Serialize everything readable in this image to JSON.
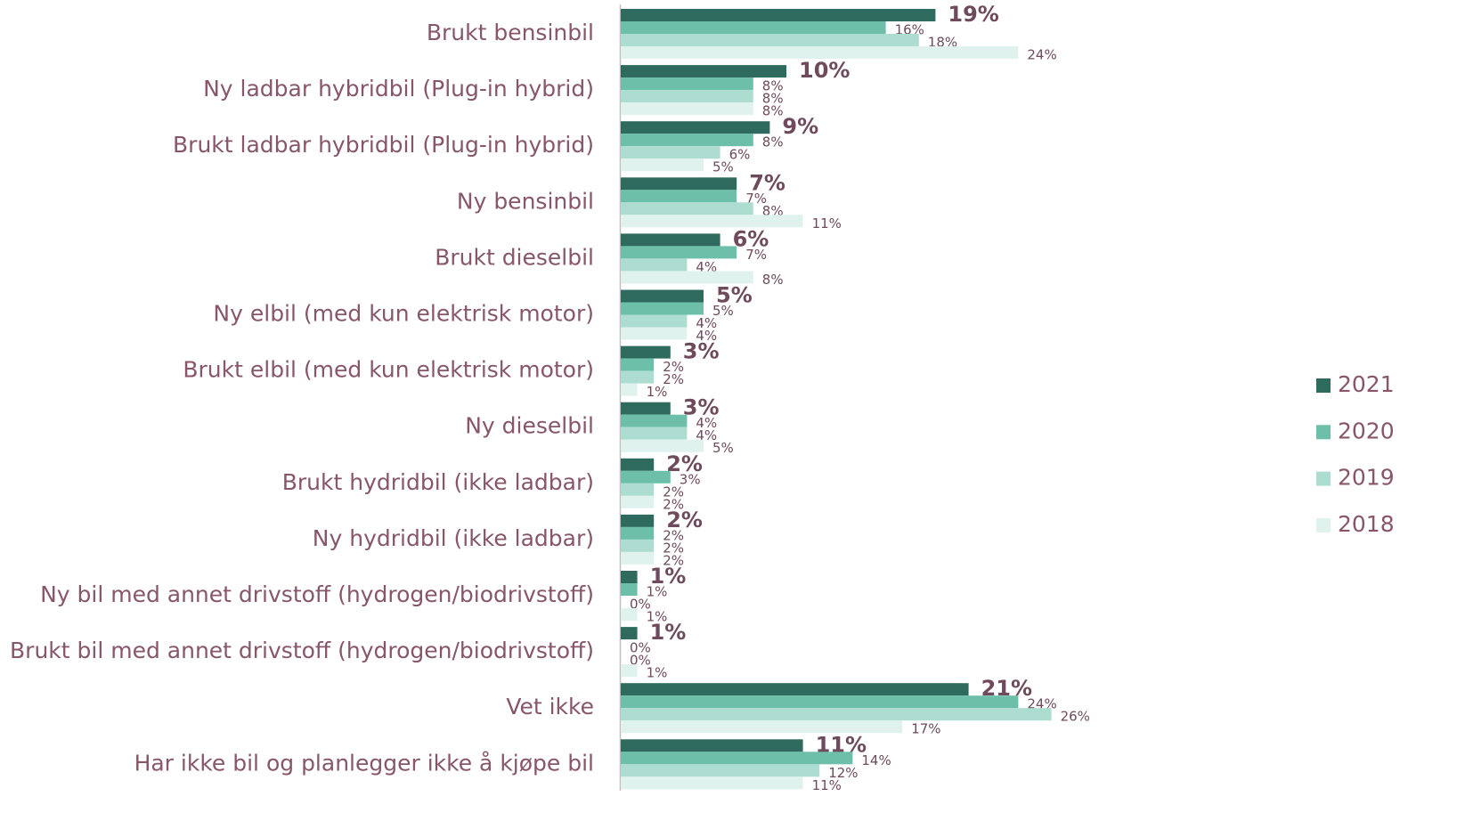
{
  "chart_data": {
    "type": "bar",
    "orientation": "horizontal",
    "categories": [
      "Brukt bensinbil",
      "Ny ladbar hybridbil  (Plug-in hybrid)",
      "Brukt ladbar hybridbil  (Plug-in hybrid)",
      "Ny bensinbil",
      "Brukt dieselbil",
      "Ny elbil (med kun elektrisk motor)",
      "Brukt elbil (med kun elektrisk motor)",
      "Ny dieselbil",
      "Brukt hydridbil (ikke ladbar)",
      "Ny hydridbil (ikke ladbar)",
      "Ny bil med annet drivstoff (hydrogen/biodrivstoff)",
      "Brukt bil med annet drivstoff (hydrogen/biodrivstoff)",
      "Vet ikke",
      "Har ikke bil og planlegger ikke å kjøpe bil"
    ],
    "series": [
      {
        "name": "2021",
        "color": "#2e6b5e",
        "values": [
          19,
          10,
          9,
          7,
          6,
          5,
          3,
          3,
          2,
          2,
          1,
          1,
          21,
          11
        ],
        "value_labels": [
          "19%",
          "10%",
          "9%",
          "7%",
          "6%",
          "5%",
          "3%",
          "3%",
          "2%",
          "2%",
          "1%",
          "1%",
          "21%",
          "11%"
        ]
      },
      {
        "name": "2020",
        "color": "#6dbfaa",
        "values": [
          16,
          8,
          8,
          7,
          7,
          5,
          2,
          4,
          3,
          2,
          1,
          0,
          24,
          14
        ],
        "value_labels": [
          "16%",
          "8%",
          "8%",
          "7%",
          "7%",
          "5%",
          "2%",
          "4%",
          "3%",
          "2%",
          "1%",
          "0%",
          "24%",
          "14%"
        ]
      },
      {
        "name": "2019",
        "color": "#acddd0",
        "values": [
          18,
          8,
          6,
          8,
          4,
          4,
          2,
          4,
          2,
          2,
          0,
          0,
          26,
          12
        ],
        "value_labels": [
          "18%",
          "8%",
          "6%",
          "8%",
          "4%",
          "4%",
          "2%",
          "4%",
          "2%",
          "2%",
          "0%",
          "0%",
          "26%",
          "12%"
        ]
      },
      {
        "name": "2018",
        "color": "#dff2ee",
        "values": [
          24,
          8,
          5,
          11,
          8,
          4,
          1,
          5,
          2,
          2,
          1,
          1,
          17,
          11
        ],
        "value_labels": [
          "24%",
          "8%",
          "5%",
          "11%",
          "8%",
          "4%",
          "1%",
          "5%",
          "2%",
          "2%",
          "1%",
          "1%",
          "17%",
          "11%"
        ]
      }
    ],
    "legend": "right"
  }
}
